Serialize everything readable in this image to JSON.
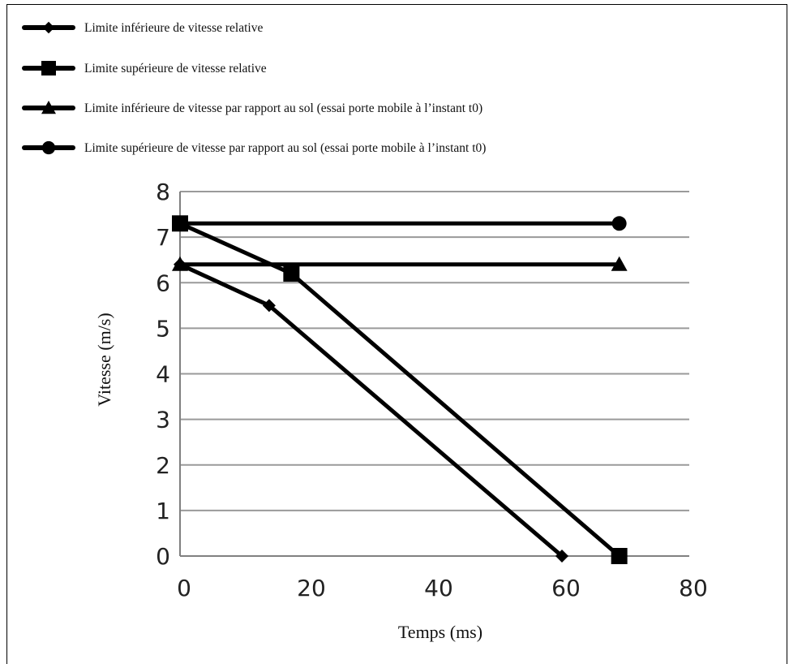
{
  "chart_data": {
    "type": "line",
    "xlabel": "Temps (ms)",
    "ylabel": "Vitesse (m/s)",
    "xlim": [
      0,
      80
    ],
    "ylim": [
      0,
      8
    ],
    "xticks": [
      "0",
      "20",
      "40",
      "60",
      "80"
    ],
    "yticks": [
      "0",
      "1",
      "2",
      "3",
      "4",
      "5",
      "6",
      "7",
      "8"
    ],
    "grid": "horizontal",
    "legend_position": "top-left",
    "colors": {
      "series": "#000000",
      "grid": "#9a9a9a",
      "axis": "#808080"
    },
    "series": [
      {
        "name": "Limite inférieure de vitesse relative",
        "marker": "diamond",
        "points": [
          [
            0,
            6.4
          ],
          [
            14,
            5.5
          ],
          [
            60,
            0
          ]
        ]
      },
      {
        "name": "Limite supérieure de vitesse relative",
        "marker": "square",
        "points": [
          [
            0,
            7.3
          ],
          [
            17.5,
            6.2
          ],
          [
            69,
            0
          ]
        ]
      },
      {
        "name": "Limite inférieure de vitesse par rapport au sol (essai porte mobile à l’instant t0)",
        "marker": "triangle",
        "points": [
          [
            0,
            6.4
          ],
          [
            69,
            6.4
          ]
        ]
      },
      {
        "name": "Limite supérieure de vitesse par rapport au sol (essai porte mobile à l’instant t0)",
        "marker": "circle",
        "points": [
          [
            0,
            7.3
          ],
          [
            69,
            7.3
          ]
        ]
      }
    ]
  }
}
